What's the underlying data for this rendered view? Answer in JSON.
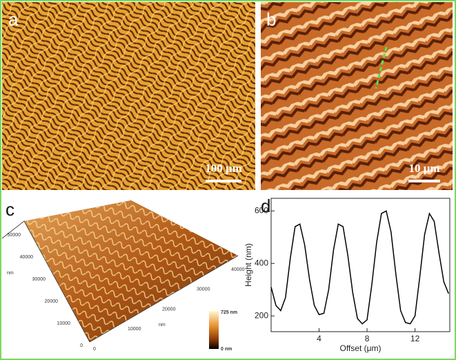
{
  "panels": {
    "a": {
      "label": "a",
      "scale_bar": "100 μm"
    },
    "b": {
      "label": "b",
      "scale_bar": "10 μm"
    },
    "c": {
      "label": "c",
      "y_label": "nm",
      "x_label": "nm",
      "y_ticks": [
        "50000",
        "40000",
        "30000",
        "20000",
        "10000",
        "0"
      ],
      "x_ticks": [
        "0",
        "10000",
        "20000",
        "30000",
        "40000"
      ],
      "colorbar_max": "725 nm",
      "colorbar_min": "0 nm"
    },
    "d": {
      "label": "d"
    }
  },
  "chart_data": {
    "type": "line",
    "x_label": "Offset (μm)",
    "y_label": "Height (nm)",
    "x": [
      0,
      0.4,
      0.8,
      1.2,
      1.6,
      2.0,
      2.4,
      2.8,
      3.2,
      3.6,
      4.0,
      4.4,
      4.8,
      5.2,
      5.6,
      6.0,
      6.4,
      6.8,
      7.2,
      7.6,
      8.0,
      8.4,
      8.8,
      9.2,
      9.6,
      10.0,
      10.4,
      10.8,
      11.2,
      11.6,
      12.0,
      12.4,
      12.8,
      13.2,
      13.6,
      14.0,
      14.4,
      14.8
    ],
    "series": [
      {
        "color": "#000000",
        "values": [
          310,
          240,
          220,
          270,
          420,
          540,
          550,
          470,
          340,
          240,
          205,
          210,
          300,
          450,
          550,
          540,
          430,
          290,
          190,
          170,
          185,
          320,
          480,
          590,
          600,
          520,
          360,
          220,
          175,
          170,
          200,
          350,
          510,
          590,
          560,
          440,
          330,
          285
        ]
      }
    ],
    "xlim": [
      0,
      14.9
    ],
    "ylim": [
      140,
      648
    ],
    "xticks": [
      4,
      8,
      12
    ],
    "yticks": [
      200,
      400,
      600
    ]
  }
}
